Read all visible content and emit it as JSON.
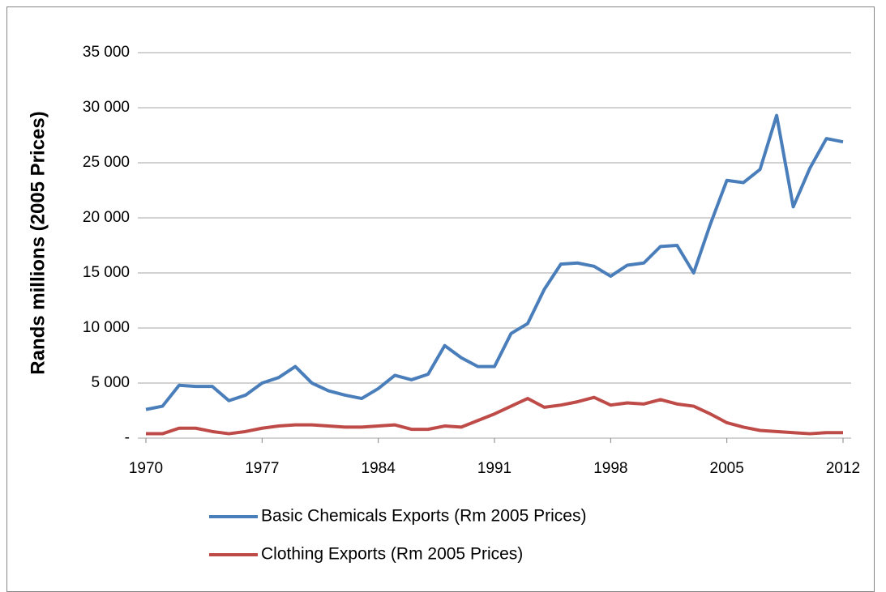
{
  "chart_data": {
    "type": "line",
    "y_label": "Rands millions (2005 Prices)",
    "x": [
      1970,
      1971,
      1972,
      1973,
      1974,
      1975,
      1976,
      1977,
      1978,
      1979,
      1980,
      1981,
      1982,
      1983,
      1984,
      1985,
      1986,
      1987,
      1988,
      1989,
      1990,
      1991,
      1992,
      1993,
      1994,
      1995,
      1996,
      1997,
      1998,
      1999,
      2000,
      2001,
      2002,
      2003,
      2004,
      2005,
      2006,
      2007,
      2008,
      2009,
      2010,
      2011,
      2012
    ],
    "xlim": [
      1970,
      2012
    ],
    "xticks": [
      1970,
      1977,
      1984,
      1991,
      1998,
      2005,
      2012
    ],
    "ylim": [
      0,
      35000
    ],
    "yticks": [
      {
        "value": 0,
        "label": "-"
      },
      {
        "value": 5000,
        "label": "5 000"
      },
      {
        "value": 10000,
        "label": "10 000"
      },
      {
        "value": 15000,
        "label": "15 000"
      },
      {
        "value": 20000,
        "label": "20 000"
      },
      {
        "value": 25000,
        "label": "25 000"
      },
      {
        "value": 30000,
        "label": "30 000"
      },
      {
        "value": 35000,
        "label": "35 000"
      }
    ],
    "grid": true,
    "legend": "bottom",
    "series": [
      {
        "name": "Basic Chemicals Exports (Rm 2005 Prices)",
        "color": "#4a7ebb",
        "values": [
          2600,
          2900,
          4800,
          4700,
          4700,
          3400,
          3900,
          5000,
          5500,
          6500,
          5000,
          4300,
          3900,
          3600,
          4500,
          5700,
          5300,
          5800,
          8400,
          7300,
          6500,
          6500,
          9500,
          10400,
          13500,
          15800,
          15900,
          15600,
          14700,
          15700,
          15900,
          17400,
          17500,
          15000,
          19400,
          23400,
          23200,
          24400,
          29300,
          21000,
          24500,
          27200,
          26900
        ]
      },
      {
        "name": "Clothing Exports (Rm 2005 Prices)",
        "color": "#be4b48",
        "values": [
          400,
          400,
          900,
          900,
          600,
          400,
          600,
          900,
          1100,
          1200,
          1200,
          1100,
          1000,
          1000,
          1100,
          1200,
          800,
          800,
          1100,
          1000,
          1600,
          2200,
          2900,
          3600,
          2800,
          3000,
          3300,
          3700,
          3000,
          3200,
          3100,
          3500,
          3100,
          2900,
          2200,
          1400,
          1000,
          700,
          600,
          500,
          400,
          500,
          500
        ]
      }
    ]
  }
}
